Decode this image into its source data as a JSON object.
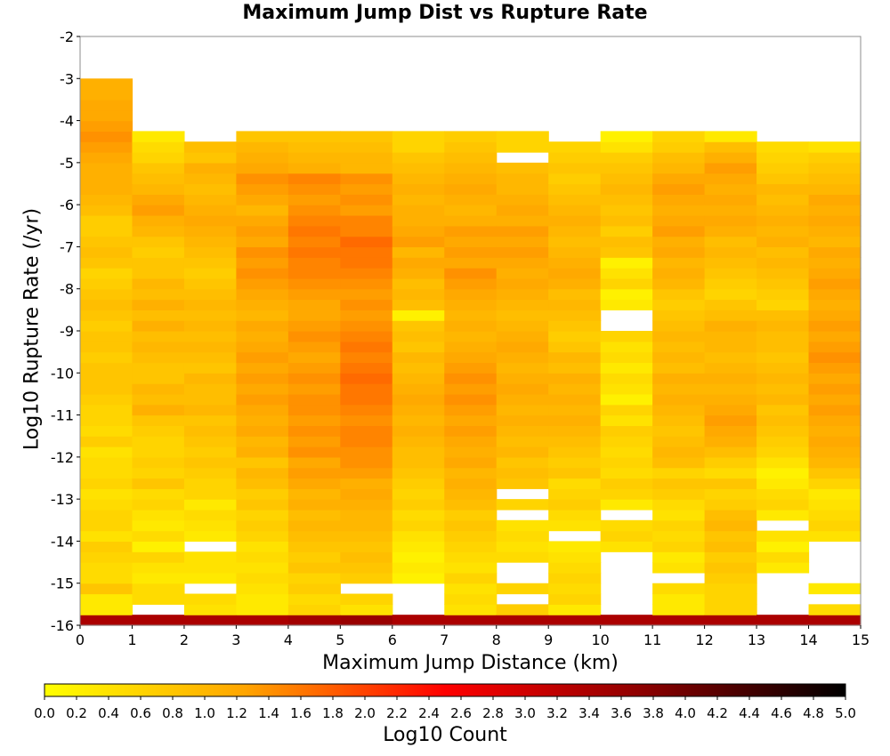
{
  "chart_data": {
    "type": "heatmap",
    "title": "Maximum Jump Dist vs Rupture Rate",
    "xlabel": "Maximum Jump Distance (km)",
    "ylabel": "Log10 Rupture Rate (/yr)",
    "colorbar_label": "Log10 Count",
    "xlim": [
      0,
      15
    ],
    "ylim": [
      -16,
      -2
    ],
    "x_ticks": [
      "0",
      "1",
      "2",
      "3",
      "4",
      "5",
      "6",
      "7",
      "8",
      "9",
      "10",
      "11",
      "12",
      "13",
      "14",
      "15"
    ],
    "y_ticks": [
      "-2",
      "-3",
      "-4",
      "-5",
      "-6",
      "-7",
      "-8",
      "-9",
      "-10",
      "-11",
      "-12",
      "-13",
      "-14",
      "-15",
      "-16"
    ],
    "color_range": [
      0.0,
      5.0
    ],
    "colorbar_ticks": [
      "0.0",
      "0.2",
      "0.4",
      "0.6",
      "0.8",
      "1.0",
      "1.2",
      "1.4",
      "1.6",
      "1.8",
      "2.0",
      "2.2",
      "2.4",
      "2.6",
      "2.8",
      "3.0",
      "3.2",
      "3.4",
      "3.6",
      "3.8",
      "4.0",
      "4.2",
      "4.4",
      "4.6",
      "4.8",
      "5.0"
    ],
    "colormap": [
      "#ffff00",
      "#ffa500",
      "#ff0000",
      "#8b0000",
      "#000000"
    ],
    "x_bin_width": 1,
    "y_bin_height": 0.25,
    "y_bin_start": -16,
    "columns": [
      {
        "x": 0.5,
        "top": -3.0,
        "values": [
          3.4,
          0.3,
          0.3,
          0.8,
          0.5,
          0.5,
          0.6,
          0.7,
          0.4,
          0.6,
          0.6,
          0.5,
          0.4,
          0.6,
          0.5,
          0.5,
          0.4,
          0.7,
          0.5,
          0.6,
          0.6,
          0.7,
          0.8,
          0.8,
          0.8,
          0.7,
          0.8,
          0.8,
          0.7,
          0.8,
          0.9,
          0.8,
          0.7,
          0.6,
          0.8,
          0.9,
          0.8,
          0.7,
          0.7,
          0.9,
          1.0,
          1.1,
          1.1,
          1.1,
          1.2,
          1.3,
          1.4,
          1.3,
          1.2,
          1.2,
          1.1,
          1.1,
          1.0,
          0.9,
          0.9,
          0.8
        ]
      },
      {
        "x": 1.5,
        "top": -3.875,
        "values": [
          3.4,
          null,
          0.5,
          0.5,
          0.3,
          0.4,
          0.6,
          0.2,
          0.5,
          0.3,
          0.4,
          0.6,
          0.5,
          0.8,
          0.6,
          0.7,
          0.6,
          0.6,
          0.7,
          0.8,
          1.1,
          0.9,
          1.0,
          0.8,
          0.8,
          0.9,
          1.0,
          0.9,
          1.1,
          0.9,
          1.1,
          0.9,
          1.0,
          0.8,
          0.8,
          0.7,
          0.8,
          1.0,
          1.1,
          1.3,
          1.2,
          1.0,
          0.9,
          0.8,
          0.6,
          0.5,
          0.3
        ]
      },
      {
        "x": 2.5,
        "top": -4.125,
        "values": [
          3.4,
          0.4,
          0.5,
          null,
          0.3,
          0.4,
          0.4,
          null,
          0.3,
          0.4,
          0.5,
          0.3,
          0.6,
          0.6,
          0.7,
          0.8,
          0.7,
          0.8,
          0.9,
          0.8,
          1.0,
          0.9,
          0.9,
          1.0,
          0.8,
          0.9,
          1.0,
          0.9,
          1.0,
          0.9,
          1.0,
          0.9,
          0.8,
          0.7,
          0.8,
          0.9,
          1.0,
          1.1,
          1.2,
          1.1,
          1.0,
          0.9,
          1.0,
          1.1,
          0.8,
          0.9
        ]
      },
      {
        "x": 3.5,
        "top": -3.875,
        "values": [
          3.4,
          0.3,
          0.3,
          0.4,
          0.5,
          0.4,
          0.5,
          0.4,
          0.6,
          0.7,
          0.6,
          0.8,
          0.7,
          0.9,
          1.0,
          0.8,
          1.1,
          1.0,
          1.2,
          1.1,
          1.2,
          1.3,
          1.2,
          1.3,
          1.2,
          1.3,
          1.2,
          1.1,
          1.2,
          1.0,
          1.1,
          1.2,
          1.3,
          1.4,
          1.3,
          1.4,
          1.2,
          1.3,
          1.2,
          1.0,
          1.2,
          1.3,
          1.4,
          1.2,
          1.1,
          1.0,
          0.8
        ]
      },
      {
        "x": 4.5,
        "top": -3.875,
        "values": [
          3.5,
          0.6,
          0.5,
          0.7,
          0.6,
          0.8,
          0.7,
          0.8,
          0.9,
          1.0,
          0.9,
          1.1,
          1.0,
          1.2,
          1.3,
          1.2,
          1.4,
          1.3,
          1.4,
          1.3,
          1.4,
          1.4,
          1.3,
          1.4,
          1.3,
          1.2,
          1.3,
          1.4,
          1.3,
          1.2,
          1.2,
          1.3,
          1.4,
          1.5,
          1.5,
          1.6,
          1.5,
          1.6,
          1.5,
          1.4,
          1.3,
          1.4,
          1.5,
          1.1,
          1.0,
          0.9,
          0.8
        ]
      },
      {
        "x": 5.5,
        "top": -3.875,
        "values": [
          3.6,
          0.4,
          0.6,
          null,
          0.7,
          0.8,
          0.9,
          0.8,
          0.9,
          1.0,
          1.0,
          1.1,
          1.2,
          1.1,
          1.3,
          1.4,
          1.4,
          1.5,
          1.5,
          1.4,
          1.5,
          1.6,
          1.6,
          1.7,
          1.6,
          1.5,
          1.6,
          1.5,
          1.4,
          1.3,
          1.4,
          1.3,
          1.4,
          1.5,
          1.6,
          1.6,
          1.7,
          1.5,
          1.5,
          1.3,
          1.4,
          1.3,
          1.4,
          1.0,
          1.0,
          0.9,
          0.8
        ]
      },
      {
        "x": 6.5,
        "top": -3.875,
        "values": [
          3.4,
          null,
          null,
          null,
          0.2,
          0.3,
          0.2,
          0.3,
          0.4,
          0.6,
          0.5,
          0.7,
          0.6,
          0.7,
          0.8,
          0.9,
          0.9,
          1.0,
          1.1,
          1.0,
          1.1,
          1.2,
          1.1,
          1.0,
          0.9,
          1.0,
          0.8,
          0.9,
          0.8,
          0.2,
          0.9,
          1.0,
          0.9,
          1.1,
          1.2,
          1.0,
          1.3,
          1.2,
          1.1,
          1.1,
          1.0,
          1.1,
          1.0,
          0.9,
          0.8,
          0.6,
          0.6
        ]
      },
      {
        "x": 7.5,
        "top": -3.875,
        "values": [
          3.4,
          0.4,
          0.5,
          0.4,
          0.6,
          0.4,
          0.5,
          0.6,
          0.7,
          0.8,
          0.7,
          0.9,
          1.0,
          1.1,
          1.0,
          1.2,
          1.1,
          1.2,
          1.3,
          1.2,
          1.3,
          1.4,
          1.3,
          1.4,
          1.3,
          1.2,
          1.1,
          1.0,
          1.1,
          1.0,
          1.1,
          1.2,
          1.3,
          1.4,
          1.2,
          1.3,
          1.2,
          1.3,
          1.1,
          1.0,
          1.1,
          1.2,
          1.1,
          1.0,
          0.9,
          0.8,
          0.7
        ]
      },
      {
        "x": 8.5,
        "top": -3.875,
        "values": [
          3.4,
          0.7,
          null,
          0.6,
          null,
          null,
          0.5,
          0.4,
          0.5,
          0.4,
          null,
          0.6,
          null,
          0.8,
          0.9,
          0.8,
          1.0,
          0.9,
          1.0,
          1.1,
          1.0,
          1.1,
          1.2,
          1.1,
          1.0,
          1.1,
          1.2,
          1.1,
          1.0,
          0.9,
          1.0,
          1.1,
          1.2,
          1.1,
          1.2,
          1.3,
          1.2,
          1.3,
          1.1,
          1.2,
          1.1,
          1.0,
          1.0,
          0.9,
          null,
          0.6,
          0.6
        ]
      },
      {
        "x": 9.5,
        "top": -4.125,
        "values": [
          3.4,
          0.3,
          0.6,
          0.5,
          0.6,
          0.5,
          0.4,
          0.3,
          null,
          0.4,
          0.5,
          0.7,
          0.6,
          0.5,
          0.8,
          0.7,
          0.8,
          0.9,
          1.0,
          1.1,
          1.0,
          1.1,
          1.0,
          1.1,
          0.9,
          1.0,
          0.8,
          0.7,
          0.8,
          0.9,
          1.0,
          0.9,
          1.1,
          1.2,
          1.1,
          1.0,
          0.9,
          1.0,
          1.1,
          1.0,
          0.9,
          0.8,
          0.7,
          0.8,
          0.7,
          0.6
        ]
      },
      {
        "x": 10.5,
        "top": -3.875,
        "values": [
          3.4,
          null,
          null,
          null,
          null,
          null,
          null,
          0.4,
          0.6,
          0.5,
          null,
          0.3,
          0.6,
          0.7,
          0.5,
          0.6,
          0.5,
          0.6,
          0.7,
          0.4,
          0.6,
          0.2,
          0.4,
          0.5,
          0.3,
          0.5,
          0.4,
          0.6,
          null,
          null,
          0.3,
          0.2,
          0.6,
          0.4,
          0.2,
          0.8,
          0.9,
          0.7,
          0.9,
          0.8,
          0.9,
          1.0,
          0.9,
          0.8,
          0.7,
          0.4,
          0.2
        ]
      },
      {
        "x": 11.5,
        "top": -3.875,
        "values": [
          3.4,
          0.3,
          0.3,
          0.5,
          null,
          0.4,
          0.3,
          0.6,
          0.5,
          0.6,
          0.4,
          0.5,
          0.7,
          0.8,
          0.6,
          0.9,
          1.0,
          0.9,
          0.8,
          0.9,
          1.0,
          1.1,
          1.0,
          1.1,
          0.9,
          1.0,
          0.9,
          1.0,
          0.9,
          0.8,
          0.7,
          0.8,
          1.0,
          1.1,
          1.0,
          1.2,
          1.1,
          1.3,
          1.2,
          1.1,
          1.2,
          1.3,
          1.2,
          1.0,
          0.9,
          0.7,
          0.6
        ]
      },
      {
        "x": 12.5,
        "top": -3.875,
        "values": [
          3.4,
          0.6,
          0.6,
          0.6,
          0.7,
          0.8,
          0.7,
          0.9,
          0.8,
          1.0,
          0.9,
          0.7,
          0.6,
          0.8,
          0.5,
          0.7,
          0.9,
          1.1,
          1.2,
          1.3,
          1.2,
          1.1,
          1.0,
          1.1,
          1.0,
          0.9,
          1.0,
          1.0,
          1.1,
          0.9,
          0.8,
          0.6,
          0.7,
          0.8,
          0.9,
          1.0,
          0.9,
          1.1,
          1.2,
          1.1,
          1.2,
          1.1,
          1.2,
          1.3,
          1.1,
          0.9,
          0.3
        ]
      },
      {
        "x": 13.5,
        "top": -4.125,
        "values": [
          3.4,
          null,
          null,
          null,
          null,
          0.3,
          0.5,
          0.2,
          0.4,
          null,
          0.3,
          0.6,
          0.5,
          0.3,
          0.2,
          0.4,
          0.6,
          0.7,
          0.8,
          0.9,
          0.8,
          1.0,
          0.9,
          1.0,
          0.9,
          0.8,
          0.9,
          0.9,
          1.0,
          0.9,
          0.6,
          0.7,
          0.8,
          0.9,
          1.0,
          0.9,
          1.1,
          1.0,
          1.1,
          1.0,
          0.9,
          1.0,
          0.8,
          0.7,
          0.6,
          0.5
        ]
      },
      {
        "x": 14.5,
        "top": -4.125,
        "values": [
          3.4,
          0.5,
          null,
          0.3,
          null,
          null,
          null,
          null,
          0.4,
          0.6,
          0.5,
          0.4,
          0.3,
          0.6,
          0.8,
          1.0,
          1.1,
          1.2,
          1.1,
          1.2,
          1.3,
          1.2,
          1.3,
          1.2,
          1.3,
          1.4,
          1.3,
          1.2,
          1.3,
          1.2,
          1.1,
          1.2,
          1.3,
          1.2,
          1.1,
          1.2,
          1.0,
          1.1,
          1.2,
          1.1,
          1.2,
          1.0,
          0.9,
          0.8,
          0.7,
          0.4
        ]
      }
    ]
  }
}
